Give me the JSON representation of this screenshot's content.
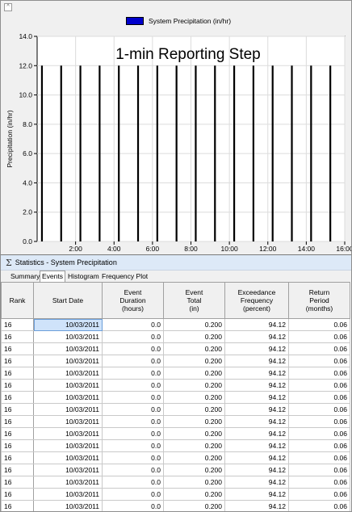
{
  "chart": {
    "legend_label": "System Precipitation (in/hr)",
    "series_color": "#0000cc",
    "overlay_text": "1-min Reporting Step",
    "chart_data": {
      "type": "bar",
      "ylabel": "Precipitation (in/hr)",
      "ylim": [
        0,
        14
      ],
      "yticks": [
        "0.0",
        "2.0",
        "4.0",
        "6.0",
        "8.0",
        "10.0",
        "12.0",
        "14.0"
      ],
      "xlim_hours": [
        0,
        16
      ],
      "xticks": [
        "2:00",
        "4:00",
        "6:00",
        "8:00",
        "10:00",
        "12:00",
        "14:00",
        "16:00"
      ],
      "grid": true,
      "bar_times_hours": [
        0.25,
        1.25,
        2.25,
        3.25,
        4.25,
        5.25,
        6.25,
        7.25,
        8.25,
        9.25,
        10.25,
        11.25,
        12.25,
        13.25,
        14.25,
        15.25
      ],
      "values": [
        12,
        12,
        12,
        12,
        12,
        12,
        12,
        12,
        12,
        12,
        12,
        12,
        12,
        12,
        12,
        12
      ]
    }
  },
  "stats": {
    "title": "Statistics - System  Precipitation",
    "tabs": [
      {
        "label": "Summary",
        "active": false
      },
      {
        "label": "Events",
        "active": true
      },
      {
        "label": "Histogram",
        "active": false
      },
      {
        "label": "Frequency Plot",
        "active": false
      }
    ],
    "headers": {
      "rank": "Rank",
      "start_date": "Start Date",
      "duration": [
        "Event",
        "Duration",
        "(hours)"
      ],
      "total": [
        "Event",
        "Total",
        "(in)"
      ],
      "exceedance": [
        "Exceedance",
        "Frequency",
        "(percent)"
      ],
      "return_period": [
        "Return",
        "Period",
        "(months)"
      ]
    },
    "rows": [
      {
        "rank": "16",
        "date": "10/03/2011",
        "duration": "0.0",
        "total": "0.200",
        "exceedance": "94.12",
        "period": "0.06"
      },
      {
        "rank": "16",
        "date": "10/03/2011",
        "duration": "0.0",
        "total": "0.200",
        "exceedance": "94.12",
        "period": "0.06"
      },
      {
        "rank": "16",
        "date": "10/03/2011",
        "duration": "0.0",
        "total": "0.200",
        "exceedance": "94.12",
        "period": "0.06"
      },
      {
        "rank": "16",
        "date": "10/03/2011",
        "duration": "0.0",
        "total": "0.200",
        "exceedance": "94.12",
        "period": "0.06"
      },
      {
        "rank": "16",
        "date": "10/03/2011",
        "duration": "0.0",
        "total": "0.200",
        "exceedance": "94.12",
        "period": "0.06"
      },
      {
        "rank": "16",
        "date": "10/03/2011",
        "duration": "0.0",
        "total": "0.200",
        "exceedance": "94.12",
        "period": "0.06"
      },
      {
        "rank": "16",
        "date": "10/03/2011",
        "duration": "0.0",
        "total": "0.200",
        "exceedance": "94.12",
        "period": "0.06"
      },
      {
        "rank": "16",
        "date": "10/03/2011",
        "duration": "0.0",
        "total": "0.200",
        "exceedance": "94.12",
        "period": "0.06"
      },
      {
        "rank": "16",
        "date": "10/03/2011",
        "duration": "0.0",
        "total": "0.200",
        "exceedance": "94.12",
        "period": "0.06"
      },
      {
        "rank": "16",
        "date": "10/03/2011",
        "duration": "0.0",
        "total": "0.200",
        "exceedance": "94.12",
        "period": "0.06"
      },
      {
        "rank": "16",
        "date": "10/03/2011",
        "duration": "0.0",
        "total": "0.200",
        "exceedance": "94.12",
        "period": "0.06"
      },
      {
        "rank": "16",
        "date": "10/03/2011",
        "duration": "0.0",
        "total": "0.200",
        "exceedance": "94.12",
        "period": "0.06"
      },
      {
        "rank": "16",
        "date": "10/03/2011",
        "duration": "0.0",
        "total": "0.200",
        "exceedance": "94.12",
        "period": "0.06"
      },
      {
        "rank": "16",
        "date": "10/03/2011",
        "duration": "0.0",
        "total": "0.200",
        "exceedance": "94.12",
        "period": "0.06"
      },
      {
        "rank": "16",
        "date": "10/03/2011",
        "duration": "0.0",
        "total": "0.200",
        "exceedance": "94.12",
        "period": "0.06"
      },
      {
        "rank": "16",
        "date": "10/03/2011",
        "duration": "0.0",
        "total": "0.200",
        "exceedance": "94.12",
        "period": "0.06"
      },
      {
        "rank": "16",
        "date": "10/03/2011",
        "duration": "0.0",
        "total": "0.200",
        "exceedance": "94.12",
        "period": "0.06"
      }
    ]
  }
}
